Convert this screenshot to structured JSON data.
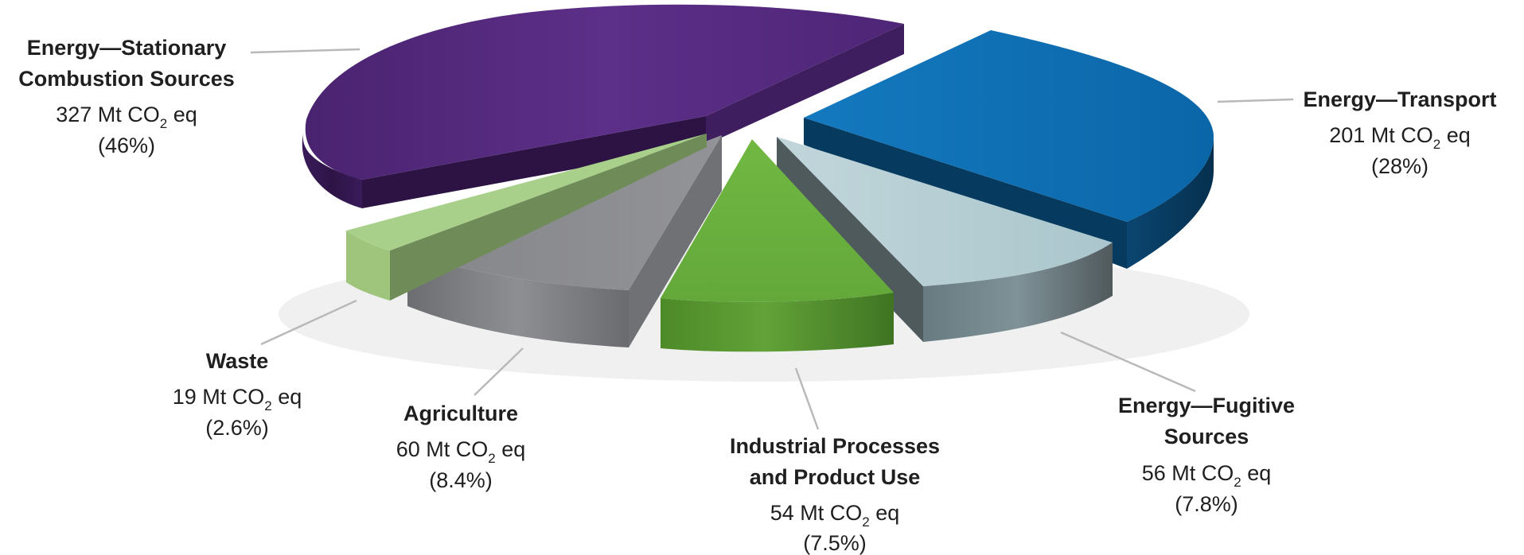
{
  "chart_data": {
    "type": "pie",
    "style": "3d-exploded",
    "unit_prefix": "Mt CO",
    "unit_subscript": "2",
    "unit_suffix": "eq",
    "slices": [
      {
        "label": [
          "Energy—Stationary",
          "Combustion Sources"
        ],
        "value": 327,
        "percent": "(46%)",
        "color": "#5a2d85",
        "label_position": "top-left"
      },
      {
        "label": [
          "Energy—Transport"
        ],
        "value": 201,
        "percent": "(28%)",
        "color": "#0f6fb5",
        "label_position": "right"
      },
      {
        "label": [
          "Energy—Fugitive",
          "Sources"
        ],
        "value": 56,
        "percent": "(7.8%)",
        "color": "#b3cdd3",
        "label_position": "bottom-right"
      },
      {
        "label": [
          "Industrial Processes",
          "and Product Use"
        ],
        "value": 54,
        "percent": "(7.5%)",
        "color": "#6db33f",
        "label_position": "bottom"
      },
      {
        "label": [
          "Agriculture"
        ],
        "value": 60,
        "percent": "(8.4%)",
        "color": "#8c8d91",
        "label_position": "bottom-left"
      },
      {
        "label": [
          "Waste"
        ],
        "value": 19,
        "percent": "(2.6%)",
        "color": "#a8cf8a",
        "label_position": "left"
      }
    ]
  }
}
